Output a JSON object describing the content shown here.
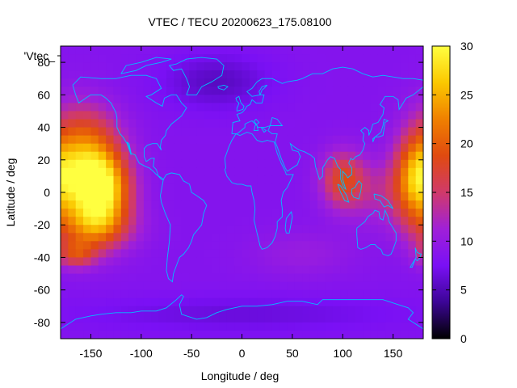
{
  "chart_data": {
    "type": "heatmap",
    "title": "VTEC / TECU 20200623_175.08100",
    "xlabel": "Longitude / deg",
    "ylabel": "Latitude / deg",
    "legend_label": "'Vtec_",
    "xlim": [
      -180,
      180
    ],
    "ylim": [
      -90,
      90
    ],
    "x_ticks": [
      -150,
      -100,
      -50,
      0,
      50,
      100,
      150
    ],
    "y_ticks": [
      -80,
      -60,
      -40,
      -20,
      0,
      20,
      40,
      60,
      80
    ],
    "colorbar": {
      "range": [
        0,
        30
      ],
      "ticks": [
        0,
        5,
        10,
        15,
        20,
        25,
        30
      ]
    },
    "colormap": [
      "#000000",
      "#3c0596",
      "#7a10f5",
      "#a020d8",
      "#d03a6a",
      "#e04a10",
      "#f08000",
      "#fbc800",
      "#ffff40"
    ],
    "coastline_color": "#00bfff",
    "grid": false,
    "colorbar_position": "right",
    "field": {
      "background_value": 8.5,
      "features": [
        {
          "lon": -140,
          "lat": 2,
          "value": 29.5,
          "sigma_lon": 20,
          "sigma_lat": 18
        },
        {
          "lon": -165,
          "lat": 18,
          "value": 20,
          "sigma_lon": 22,
          "sigma_lat": 22
        },
        {
          "lon": -150,
          "lat": -22,
          "value": 16,
          "sigma_lon": 28,
          "sigma_lat": 10
        },
        {
          "lon": -165,
          "lat": -38,
          "value": 16.5,
          "sigma_lon": 14,
          "sigma_lat": 6
        },
        {
          "lon": -145,
          "lat": 40,
          "value": 11,
          "sigma_lon": 22,
          "sigma_lat": 12
        },
        {
          "lon": 100,
          "lat": 8,
          "value": 17.5,
          "sigma_lon": 15,
          "sigma_lat": 12
        },
        {
          "lon": 172,
          "lat": 8,
          "value": 19.5,
          "sigma_lon": 14,
          "sigma_lat": 18
        },
        {
          "lon": 140,
          "lat": 0,
          "value": 12.5,
          "sigma_lon": 28,
          "sigma_lat": 14
        },
        {
          "lon": -25,
          "lat": 68,
          "value": 5.5,
          "sigma_lon": 38,
          "sigma_lat": 12
        },
        {
          "lon": 60,
          "lat": -38,
          "value": 10.5,
          "sigma_lon": 35,
          "sigma_lat": 10
        },
        {
          "lon": 0,
          "lat": -75,
          "value": 6.5,
          "sigma_lon": 120,
          "sigma_lat": 8
        }
      ]
    }
  }
}
